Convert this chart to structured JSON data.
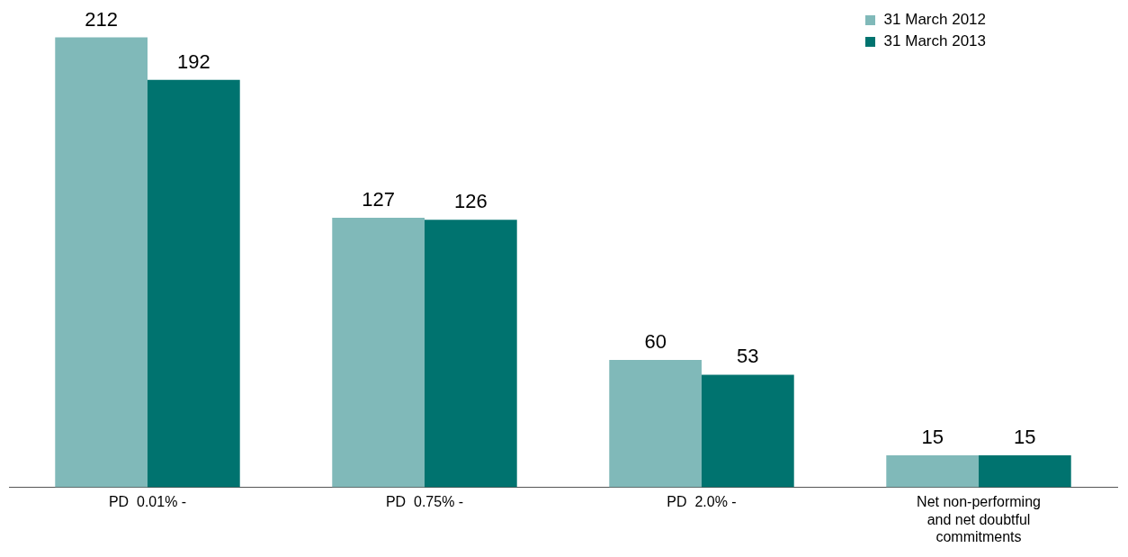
{
  "chart_data": {
    "type": "bar",
    "categories": [
      "PD  0.01% -",
      "PD  0.75% -",
      "PD  2.0% -",
      "Net non-performing and net doubtful commitments"
    ],
    "series": [
      {
        "name": "31 March 2012",
        "color": "#80b9b9",
        "values": [
          212,
          127,
          60,
          15
        ]
      },
      {
        "name": "31 March 2013",
        "color": "#00736f",
        "values": [
          192,
          126,
          53,
          15
        ]
      }
    ],
    "relative": false,
    "data_labels": true,
    "legend": "top right"
  }
}
